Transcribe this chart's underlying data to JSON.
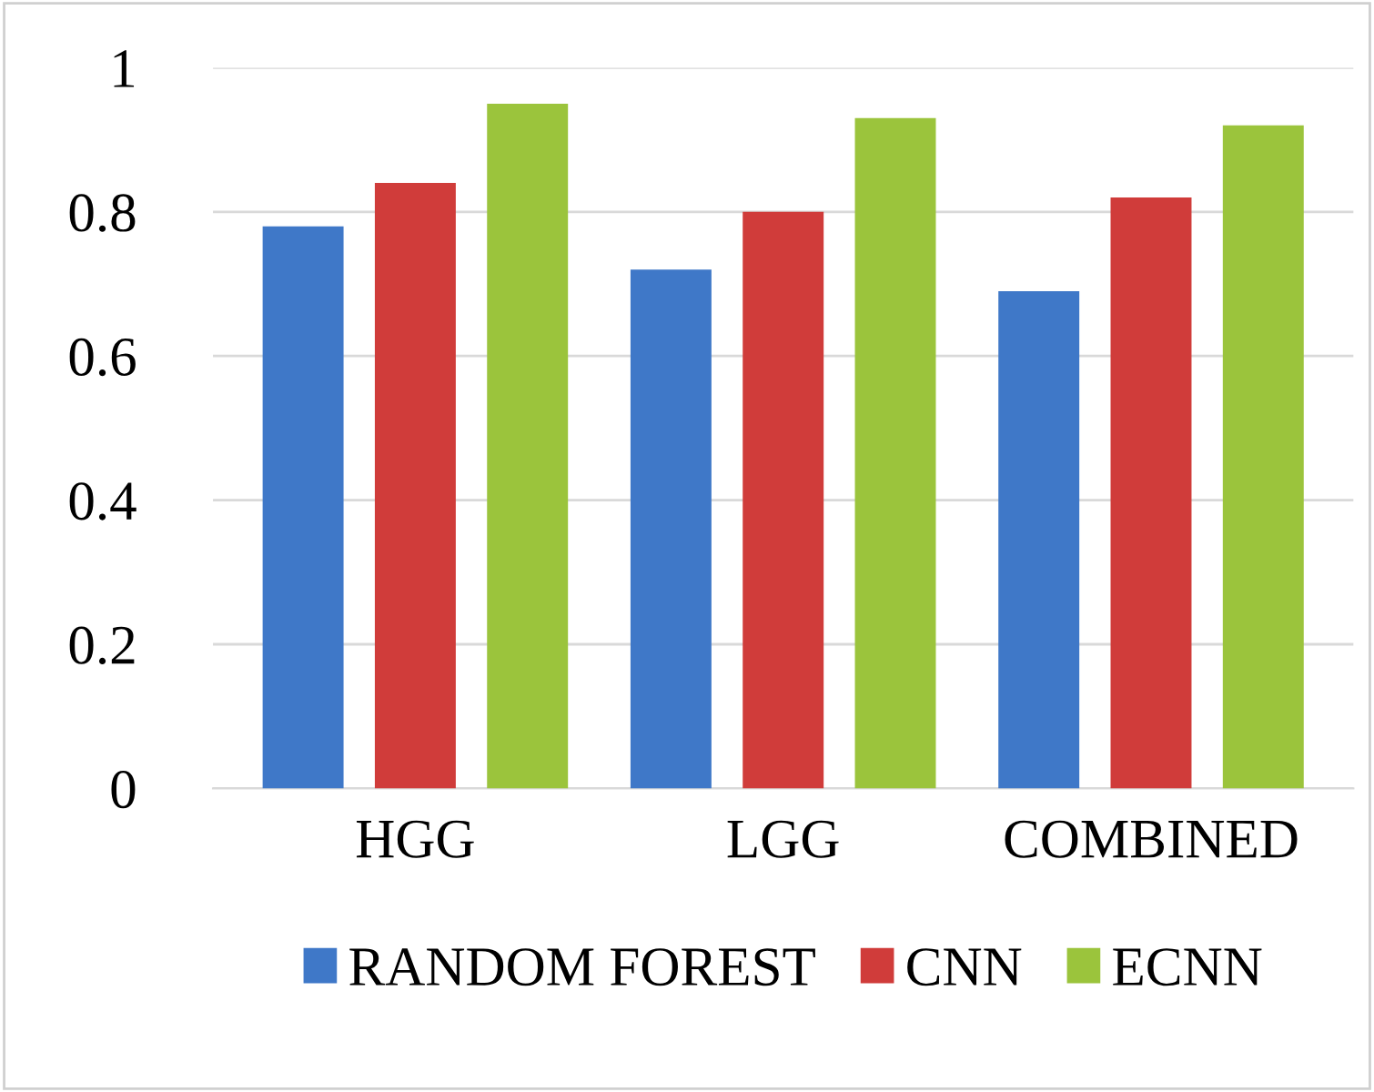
{
  "chart_data": {
    "type": "bar",
    "categories": [
      "HGG",
      "LGG",
      "COMBINED"
    ],
    "series": [
      {
        "name": "RANDOM FOREST",
        "color": "#3f78c8",
        "values": [
          0.78,
          0.72,
          0.69
        ]
      },
      {
        "name": "CNN",
        "color": "#d03c3a",
        "values": [
          0.84,
          0.8,
          0.82
        ]
      },
      {
        "name": "ECNN",
        "color": "#9bc43c",
        "values": [
          0.95,
          0.93,
          0.92
        ]
      }
    ],
    "ylim": [
      0,
      1
    ],
    "yticks": [
      0,
      0.2,
      0.4,
      0.6,
      0.8,
      {
        "value": 1,
        "label": "1"
      }
    ],
    "grid": "y",
    "legend": "bottom"
  }
}
